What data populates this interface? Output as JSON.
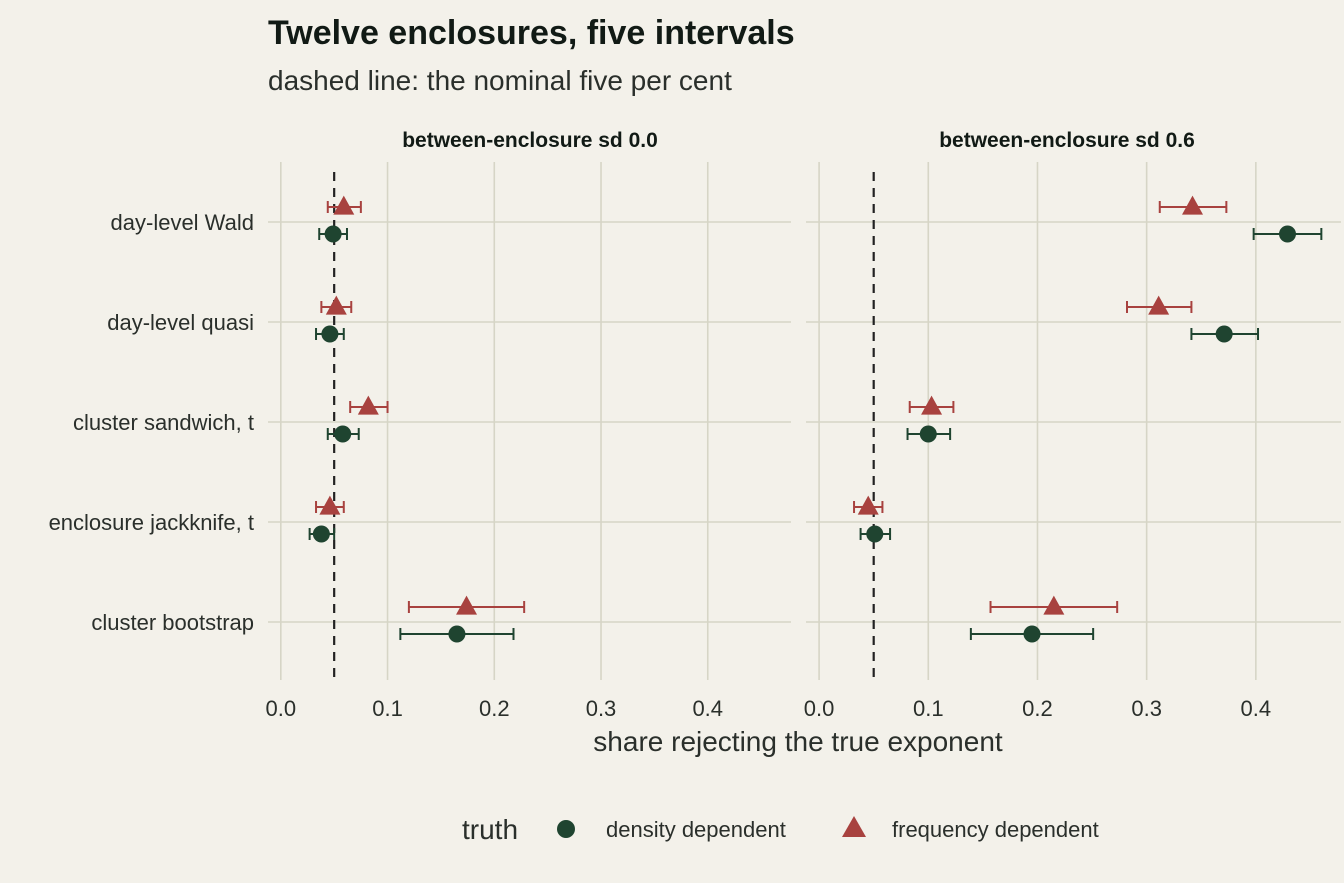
{
  "chart_data": {
    "type": "scatter",
    "title": "Twelve enclosures, five intervals",
    "subtitle": "dashed line: the nominal five per cent",
    "xlabel": "share rejecting the true exponent",
    "reference_line": 0.05,
    "x_ticks": [
      "0.0",
      "0.1",
      "0.2",
      "0.3",
      "0.4"
    ],
    "xlim": [
      -0.012,
      0.478
    ],
    "methods": [
      "day-level Wald",
      "day-level quasi",
      "cluster sandwich, t",
      "enclosure jackknife, t",
      "cluster bootstrap"
    ],
    "legend": {
      "title": "truth",
      "position": "bottom",
      "entries": [
        "density dependent",
        "frequency dependent"
      ]
    },
    "colors": {
      "density dependent": "#1f4430",
      "frequency dependent": "#a8423f"
    },
    "panels": [
      {
        "label": "between-enclosure sd 0.0",
        "series": [
          {
            "name": "density dependent",
            "points": [
              {
                "method": "day-level Wald",
                "x": 0.049,
                "lo": 0.036,
                "hi": 0.062
              },
              {
                "method": "day-level quasi",
                "x": 0.046,
                "lo": 0.033,
                "hi": 0.059
              },
              {
                "method": "cluster sandwich, t",
                "x": 0.058,
                "lo": 0.044,
                "hi": 0.073
              },
              {
                "method": "enclosure jackknife, t",
                "x": 0.038,
                "lo": 0.027,
                "hi": 0.05
              },
              {
                "method": "cluster bootstrap",
                "x": 0.165,
                "lo": 0.112,
                "hi": 0.218
              }
            ]
          },
          {
            "name": "frequency dependent",
            "points": [
              {
                "method": "day-level Wald",
                "x": 0.059,
                "lo": 0.044,
                "hi": 0.075
              },
              {
                "method": "day-level quasi",
                "x": 0.052,
                "lo": 0.038,
                "hi": 0.066
              },
              {
                "method": "cluster sandwich, t",
                "x": 0.082,
                "lo": 0.065,
                "hi": 0.1
              },
              {
                "method": "enclosure jackknife, t",
                "x": 0.046,
                "lo": 0.033,
                "hi": 0.059
              },
              {
                "method": "cluster bootstrap",
                "x": 0.174,
                "lo": 0.12,
                "hi": 0.228
              }
            ]
          }
        ]
      },
      {
        "label": "between-enclosure sd 0.6",
        "series": [
          {
            "name": "density dependent",
            "points": [
              {
                "method": "day-level Wald",
                "x": 0.429,
                "lo": 0.398,
                "hi": 0.46
              },
              {
                "method": "day-level quasi",
                "x": 0.371,
                "lo": 0.341,
                "hi": 0.402
              },
              {
                "method": "cluster sandwich, t",
                "x": 0.1,
                "lo": 0.081,
                "hi": 0.12
              },
              {
                "method": "enclosure jackknife, t",
                "x": 0.051,
                "lo": 0.038,
                "hi": 0.065
              },
              {
                "method": "cluster bootstrap",
                "x": 0.195,
                "lo": 0.139,
                "hi": 0.251
              }
            ]
          },
          {
            "name": "frequency dependent",
            "points": [
              {
                "method": "day-level Wald",
                "x": 0.342,
                "lo": 0.312,
                "hi": 0.373
              },
              {
                "method": "day-level quasi",
                "x": 0.311,
                "lo": 0.282,
                "hi": 0.341
              },
              {
                "method": "cluster sandwich, t",
                "x": 0.103,
                "lo": 0.083,
                "hi": 0.123
              },
              {
                "method": "enclosure jackknife, t",
                "x": 0.045,
                "lo": 0.032,
                "hi": 0.058
              },
              {
                "method": "cluster bootstrap",
                "x": 0.215,
                "lo": 0.157,
                "hi": 0.273
              }
            ]
          }
        ]
      }
    ]
  }
}
